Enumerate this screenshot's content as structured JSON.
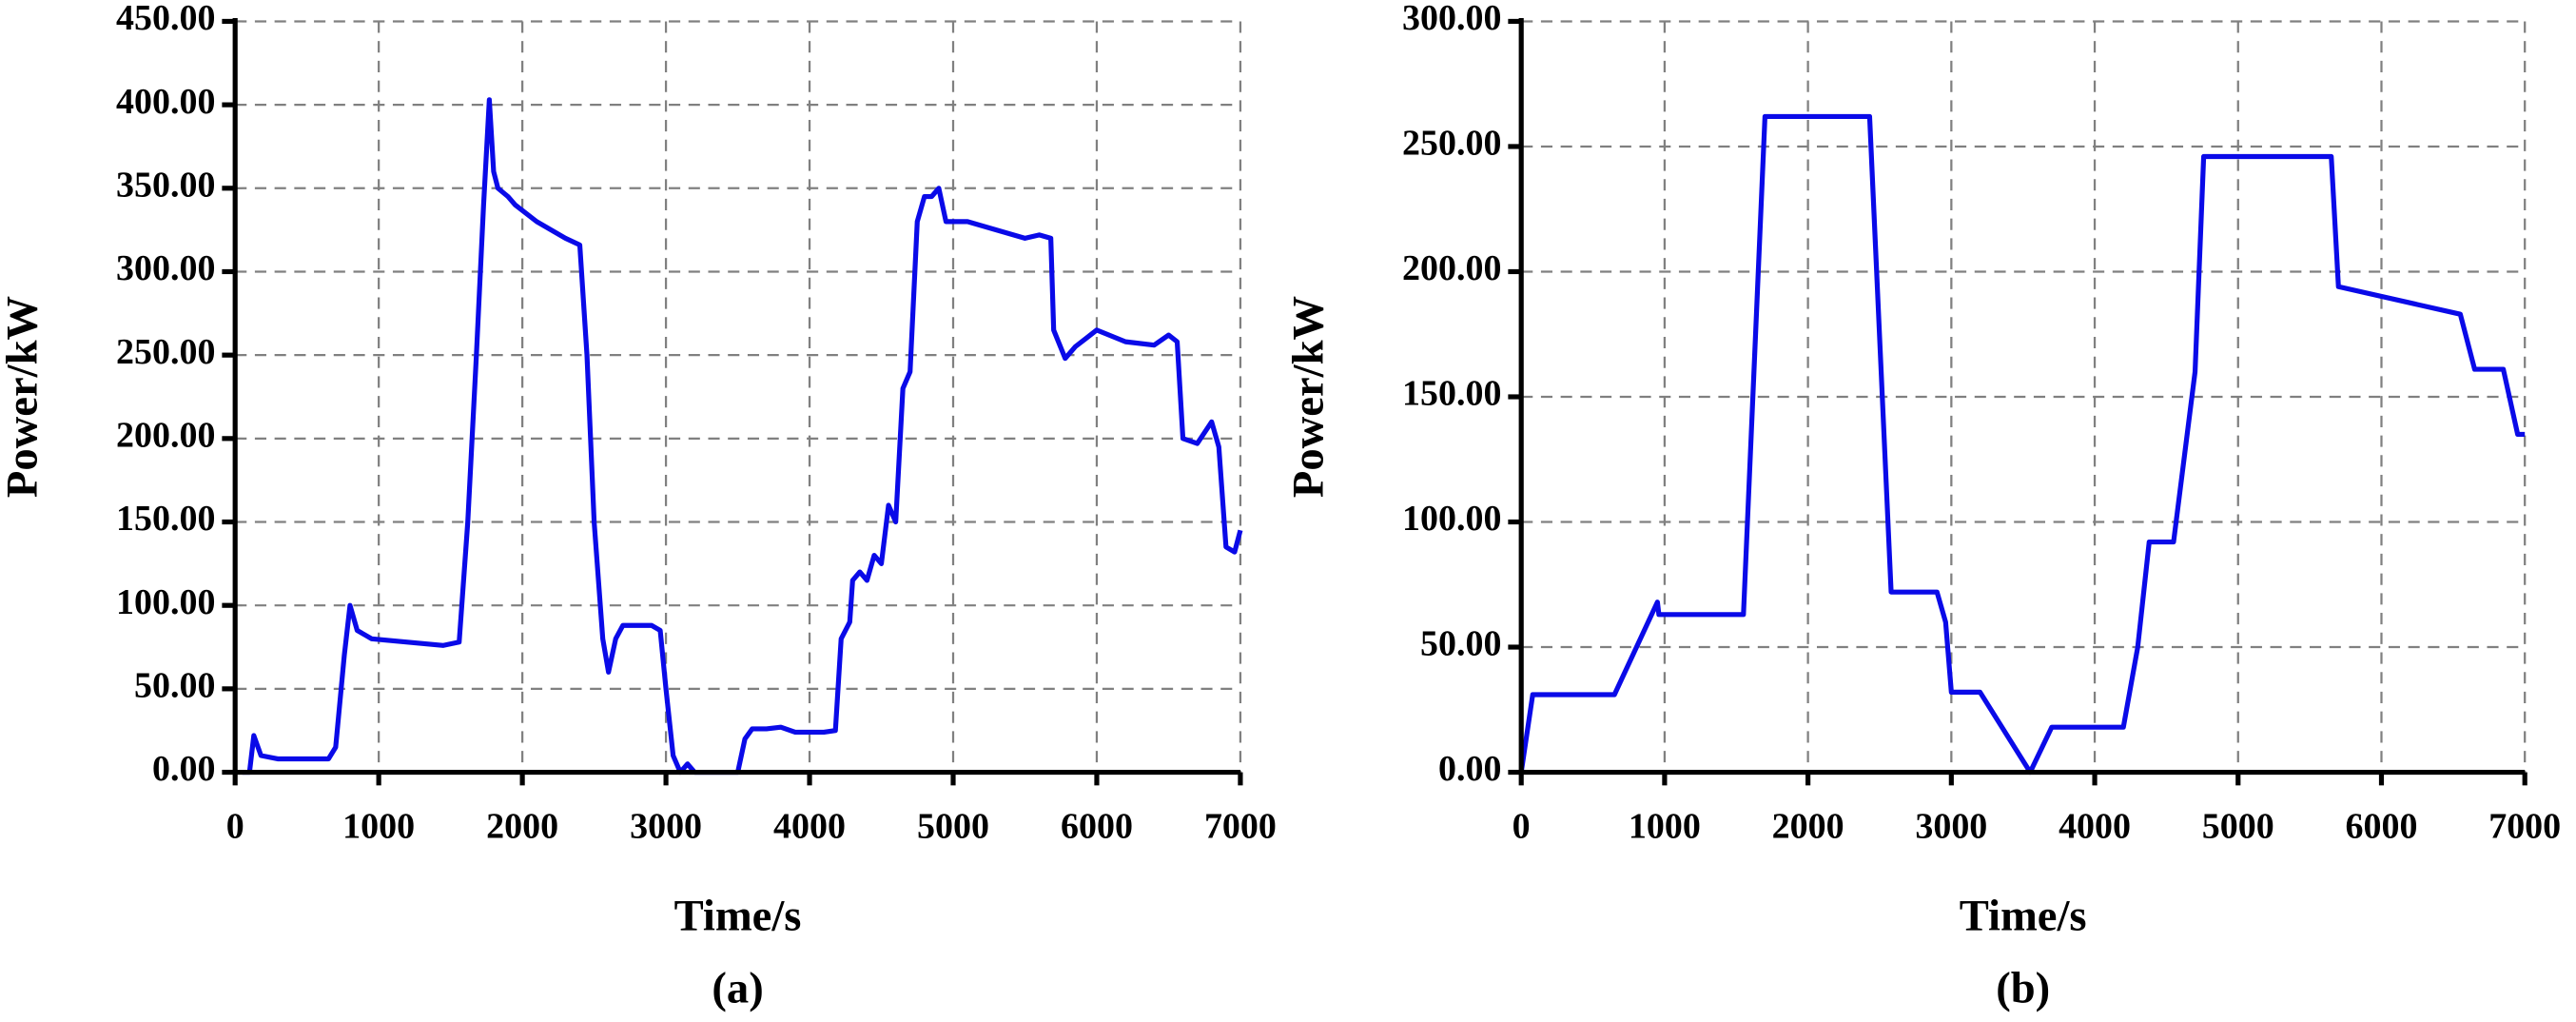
{
  "chart_data": [
    {
      "type": "line",
      "caption": "(a)",
      "x_label": "Time/s",
      "y_label": "Power/kW",
      "xlim": [
        0,
        7000
      ],
      "xticks": [
        0,
        1000,
        2000,
        3000,
        4000,
        5000,
        6000,
        7000
      ],
      "ylim": [
        0,
        450
      ],
      "yticks": [
        {
          "value": 0,
          "label": "0.00"
        },
        {
          "value": 50,
          "label": "50.00"
        },
        {
          "value": 100,
          "label": "100.00"
        },
        {
          "value": 150,
          "label": "150.00"
        },
        {
          "value": 200,
          "label": "200.00"
        },
        {
          "value": 250,
          "label": "250.00"
        },
        {
          "value": 300,
          "label": "300.00"
        },
        {
          "value": 350,
          "label": "350.00"
        },
        {
          "value": 400,
          "label": "400.00"
        },
        {
          "value": 450,
          "label": "450.00"
        }
      ],
      "grid": true,
      "color": "#0a0ae8",
      "x": [
        50,
        100,
        130,
        180,
        300,
        650,
        700,
        760,
        800,
        850,
        950,
        1200,
        1450,
        1560,
        1620,
        1680,
        1730,
        1770,
        1800,
        1830,
        1900,
        1950,
        2100,
        2300,
        2400,
        2450,
        2500,
        2560,
        2600,
        2650,
        2700,
        2900,
        2960,
        3000,
        3050,
        3100,
        3150,
        3200,
        3500,
        3550,
        3600,
        3700,
        3800,
        3900,
        4100,
        4180,
        4220,
        4280,
        4300,
        4350,
        4400,
        4450,
        4500,
        4550,
        4600,
        4650,
        4700,
        4750,
        4800,
        4850,
        4900,
        4950,
        5100,
        5300,
        5500,
        5600,
        5680,
        5700,
        5780,
        5850,
        6000,
        6200,
        6400,
        6500,
        6560,
        6600,
        6700,
        6800,
        6850,
        6900,
        6960,
        7000
      ],
      "values": [
        0,
        0,
        22,
        10,
        8,
        8,
        15,
        70,
        100,
        85,
        80,
        78,
        76,
        78,
        150,
        250,
        340,
        403,
        360,
        350,
        345,
        340,
        330,
        320,
        316,
        250,
        150,
        80,
        60,
        80,
        88,
        88,
        85,
        50,
        10,
        0,
        5,
        0,
        0,
        20,
        26,
        26,
        27,
        24,
        24,
        25,
        80,
        90,
        115,
        120,
        115,
        130,
        125,
        160,
        150,
        230,
        240,
        330,
        345,
        345,
        350,
        330,
        330,
        325,
        320,
        322,
        320,
        265,
        248,
        255,
        265,
        258,
        256,
        262,
        258,
        200,
        197,
        210,
        195,
        135,
        132,
        145
      ]
    },
    {
      "type": "line",
      "caption": "(b)",
      "x_label": "Time/s",
      "y_label": "Power/kW",
      "xlim": [
        0,
        7000
      ],
      "xticks": [
        0,
        1000,
        2000,
        3000,
        4000,
        5000,
        6000,
        7000
      ],
      "ylim": [
        0,
        300
      ],
      "yticks": [
        {
          "value": 0,
          "label": "0.00"
        },
        {
          "value": 50,
          "label": "50.00"
        },
        {
          "value": 100,
          "label": "100.00"
        },
        {
          "value": 150,
          "label": "150.00"
        },
        {
          "value": 200,
          "label": "200.00"
        },
        {
          "value": 250,
          "label": "250.00"
        },
        {
          "value": 300,
          "label": "300.00"
        }
      ],
      "grid": true,
      "color": "#0a0ae8",
      "x": [
        0,
        80,
        650,
        950,
        960,
        1550,
        1700,
        2430,
        2580,
        2900,
        2960,
        3000,
        3200,
        3550,
        3700,
        4200,
        4300,
        4380,
        4550,
        4700,
        4760,
        5650,
        5700,
        6550,
        6650,
        6850,
        6950,
        7000
      ],
      "values": [
        0,
        31,
        31,
        68,
        63,
        63,
        262,
        262,
        72,
        72,
        60,
        32,
        32,
        0,
        18,
        18,
        50,
        92,
        92,
        160,
        246,
        246,
        194,
        183,
        161,
        161,
        135,
        135
      ]
    }
  ]
}
